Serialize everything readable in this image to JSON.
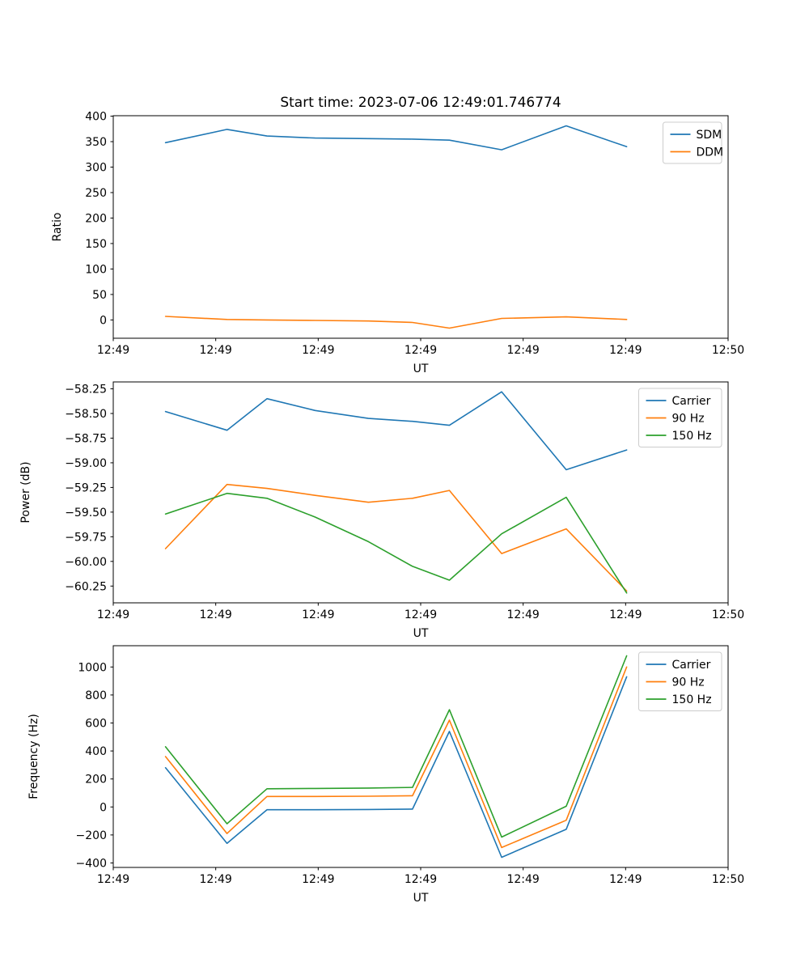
{
  "figure": {
    "title": "Start time: 2023-07-06 12:49:01.746774",
    "background_color": "#ffffff",
    "text_color": "#000000",
    "spine_color": "#000000"
  },
  "palette": {
    "blue": "#1f77b4",
    "orange": "#ff7f0e",
    "green": "#2ca02c"
  },
  "chart_data": [
    {
      "type": "line",
      "title": "Start time: 2023-07-06 12:49:01.746774",
      "xlabel": "UT",
      "ylabel": "Ratio",
      "grid": false,
      "legend_position": "upper right",
      "xlim": [
        0,
        60
      ],
      "ylim": [
        -35.9,
        400.9
      ],
      "x_units": "seconds_after_12:49:00",
      "xtick_values": [
        0,
        10,
        20,
        30,
        40,
        50,
        60
      ],
      "xtick_labels": [
        "12:49",
        "12:49",
        "12:49",
        "12:49",
        "12:49",
        "12:49",
        "12:50"
      ],
      "ytick_values": [
        0,
        50,
        100,
        150,
        200,
        250,
        300,
        350,
        400
      ],
      "ytick_labels": [
        "0",
        "50",
        "100",
        "150",
        "200",
        "250",
        "300",
        "350",
        "400"
      ],
      "x": [
        5.1,
        11.1,
        15.0,
        19.7,
        24.9,
        29.2,
        32.8,
        37.9,
        44.2,
        50.1
      ],
      "series": [
        {
          "name": "SDM",
          "color": "#1f77b4",
          "values": [
            348,
            374,
            361,
            357,
            356,
            355,
            353,
            334,
            381,
            340
          ]
        },
        {
          "name": "DDM",
          "color": "#ff7f0e",
          "values": [
            7,
            1,
            0,
            -1,
            -2,
            -5,
            -16,
            3,
            6,
            1
          ]
        }
      ]
    },
    {
      "type": "line",
      "title": "",
      "xlabel": "UT",
      "ylabel": "Power (dB)",
      "grid": false,
      "legend_position": "upper right",
      "xlim": [
        0,
        60
      ],
      "ylim": [
        -60.42,
        -58.18
      ],
      "x_units": "seconds_after_12:49:00",
      "xtick_values": [
        0,
        10,
        20,
        30,
        40,
        50,
        60
      ],
      "xtick_labels": [
        "12:49",
        "12:49",
        "12:49",
        "12:49",
        "12:49",
        "12:49",
        "12:50"
      ],
      "ytick_values": [
        -60.25,
        -60.0,
        -59.75,
        -59.5,
        -59.25,
        -59.0,
        -58.75,
        -58.5,
        -58.25
      ],
      "ytick_labels": [
        "−60.25",
        "−60.00",
        "−59.75",
        "−59.50",
        "−59.25",
        "−59.00",
        "−58.75",
        "−58.50",
        "−58.25"
      ],
      "x": [
        5.1,
        11.1,
        15.0,
        19.7,
        24.9,
        29.2,
        32.8,
        37.9,
        44.2,
        50.1
      ],
      "series": [
        {
          "name": "Carrier",
          "color": "#1f77b4",
          "values": [
            -58.48,
            -58.67,
            -58.35,
            -58.47,
            -58.55,
            -58.58,
            -58.62,
            -58.28,
            -59.07,
            -58.87
          ]
        },
        {
          "name": "90 Hz",
          "color": "#ff7f0e",
          "values": [
            -59.87,
            -59.22,
            -59.26,
            -59.33,
            -59.4,
            -59.36,
            -59.28,
            -59.92,
            -59.67,
            -60.3
          ]
        },
        {
          "name": "150 Hz",
          "color": "#2ca02c",
          "values": [
            -59.52,
            -59.31,
            -59.36,
            -59.55,
            -59.8,
            -60.05,
            -60.19,
            -59.72,
            -59.35,
            -60.32
          ]
        }
      ]
    },
    {
      "type": "line",
      "title": "",
      "xlabel": "UT",
      "ylabel": "Frequency (Hz)",
      "grid": false,
      "legend_position": "upper right",
      "xlim": [
        0,
        60
      ],
      "ylim": [
        -432,
        1152
      ],
      "x_units": "seconds_after_12:49:00",
      "xtick_values": [
        0,
        10,
        20,
        30,
        40,
        50,
        60
      ],
      "xtick_labels": [
        "12:49",
        "12:49",
        "12:49",
        "12:49",
        "12:49",
        "12:49",
        "12:50"
      ],
      "ytick_values": [
        -400,
        -200,
        0,
        200,
        400,
        600,
        800,
        1000
      ],
      "ytick_labels": [
        "−400",
        "−200",
        "0",
        "200",
        "400",
        "600",
        "800",
        "1000"
      ],
      "x": [
        5.1,
        11.1,
        15.0,
        19.7,
        24.9,
        29.2,
        32.8,
        37.9,
        44.2,
        50.1
      ],
      "series": [
        {
          "name": "Carrier",
          "color": "#1f77b4",
          "values": [
            280,
            -260,
            -20,
            -20,
            -18,
            -15,
            540,
            -360,
            -160,
            930
          ]
        },
        {
          "name": "90 Hz",
          "color": "#ff7f0e",
          "values": [
            360,
            -190,
            75,
            75,
            77,
            80,
            620,
            -290,
            -95,
            1000
          ]
        },
        {
          "name": "150 Hz",
          "color": "#2ca02c",
          "values": [
            430,
            -120,
            130,
            132,
            135,
            140,
            695,
            -215,
            5,
            1080
          ]
        }
      ]
    }
  ]
}
